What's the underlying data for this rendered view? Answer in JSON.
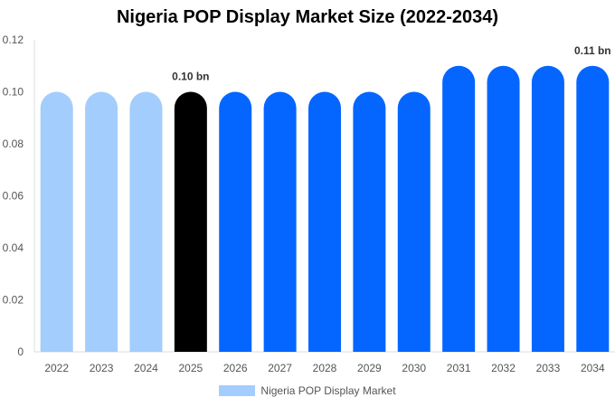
{
  "chart_data": {
    "type": "bar",
    "title": "Nigeria POP Display Market Size (2022-2034)",
    "categories": [
      "2022",
      "2023",
      "2024",
      "2025",
      "2026",
      "2027",
      "2028",
      "2029",
      "2030",
      "2031",
      "2032",
      "2033",
      "2034"
    ],
    "series": [
      {
        "name": "Nigeria POP Display Market",
        "values": [
          0.1,
          0.1,
          0.1,
          0.1,
          0.1,
          0.1,
          0.1,
          0.1,
          0.1,
          0.11,
          0.11,
          0.11,
          0.11
        ]
      }
    ],
    "bar_colors": [
      "#a3cdfc",
      "#a3cdfc",
      "#a3cdfc",
      "#000000",
      "#0466ff",
      "#0466ff",
      "#0466ff",
      "#0466ff",
      "#0466ff",
      "#0466ff",
      "#0466ff",
      "#0466ff",
      "#0466ff"
    ],
    "data_labels": [
      {
        "category": "2025",
        "text": "0.10 bn"
      },
      {
        "category": "2034",
        "text": "0.11 bn"
      }
    ],
    "yticks": [
      "0",
      "0.02",
      "0.04",
      "0.06",
      "0.08",
      "0.10",
      "0.12"
    ],
    "ylim": [
      0,
      0.12
    ],
    "grid": false,
    "legend": {
      "position": "bottom",
      "color": "#a3cdfc"
    }
  }
}
